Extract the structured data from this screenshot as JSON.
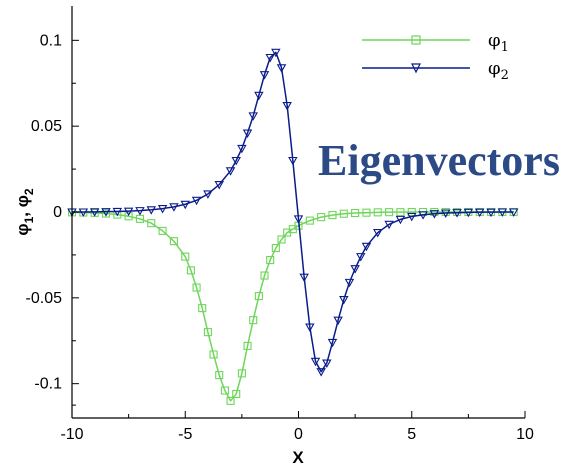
{
  "chart_data": {
    "type": "line",
    "xlabel": "X",
    "ylabel": "φ1, φ2",
    "ylabel_parts": {
      "a": "φ",
      "a_sub": "1",
      "sep": ", ",
      "b": "φ",
      "b_sub": "2"
    },
    "xlim": [
      -10,
      10
    ],
    "ylim": [
      -0.12,
      0.12
    ],
    "xticks": [
      -10,
      -5,
      0,
      5,
      10
    ],
    "xtick_labels": [
      "-10",
      "-5",
      "0",
      "5",
      "10"
    ],
    "yticks": [
      -0.1,
      -0.05,
      0,
      0.05,
      0.1
    ],
    "ytick_labels": [
      "-0.1",
      "-0.05",
      "0",
      "0.05",
      "0.1"
    ],
    "grid": false,
    "legend_position": "top-right",
    "annotation": "Eigenvectors",
    "series": [
      {
        "name": "φ1",
        "label": "φ",
        "sub": "1",
        "color": "#6ed65a",
        "marker": "square",
        "x": [
          -10,
          -9.5,
          -9,
          -8.5,
          -8,
          -7.5,
          -7,
          -6.5,
          -6,
          -5.5,
          -5,
          -4.75,
          -4.5,
          -4.25,
          -4,
          -3.75,
          -3.5,
          -3.25,
          -3,
          -2.75,
          -2.5,
          -2.25,
          -2,
          -1.75,
          -1.5,
          -1.25,
          -1,
          -0.75,
          -0.5,
          -0.25,
          0,
          0.5,
          1,
          1.5,
          2,
          2.5,
          3,
          3.5,
          4,
          4.5,
          5,
          5.5,
          6,
          6.5,
          7,
          7.5,
          8,
          8.5,
          9,
          9.5
        ],
        "y": [
          -0.0002,
          -0.0003,
          -0.0005,
          -0.0009,
          -0.0015,
          -0.0025,
          -0.004,
          -0.0065,
          -0.011,
          -0.017,
          -0.026,
          -0.034,
          -0.044,
          -0.056,
          -0.07,
          -0.083,
          -0.095,
          -0.104,
          -0.11,
          -0.106,
          -0.094,
          -0.078,
          -0.063,
          -0.049,
          -0.037,
          -0.028,
          -0.021,
          -0.016,
          -0.012,
          -0.01,
          -0.008,
          -0.005,
          -0.003,
          -0.0018,
          -0.001,
          -0.0006,
          -0.0004,
          -0.0002,
          -0.0001,
          -0.0001,
          0,
          0,
          0,
          0,
          0,
          0,
          0,
          0,
          0,
          0
        ]
      },
      {
        "name": "φ2",
        "label": "φ",
        "sub": "2",
        "color": "#0a1c8c",
        "marker": "triangle-down",
        "x": [
          -10,
          -9.5,
          -9,
          -8.5,
          -8,
          -7.5,
          -7,
          -6.5,
          -6,
          -5.5,
          -5,
          -4.5,
          -4,
          -3.5,
          -3,
          -2.75,
          -2.5,
          -2.25,
          -2,
          -1.75,
          -1.5,
          -1.25,
          -1,
          -0.75,
          -0.5,
          -0.25,
          0,
          0.25,
          0.5,
          0.75,
          1,
          1.25,
          1.5,
          1.75,
          2,
          2.25,
          2.5,
          2.75,
          3,
          3.5,
          4,
          4.5,
          5,
          5.5,
          6,
          6.5,
          7,
          7.5,
          8,
          8.5,
          9,
          9.5
        ],
        "y": [
          0,
          0,
          0.0001,
          0.0002,
          0.0003,
          0.0005,
          0.0008,
          0.0013,
          0.002,
          0.003,
          0.0045,
          0.0068,
          0.0105,
          0.016,
          0.024,
          0.03,
          0.037,
          0.046,
          0.056,
          0.068,
          0.08,
          0.09,
          0.093,
          0.084,
          0.062,
          0.03,
          -0.004,
          -0.038,
          -0.067,
          -0.087,
          -0.093,
          -0.088,
          -0.076,
          -0.063,
          -0.051,
          -0.041,
          -0.033,
          -0.026,
          -0.02,
          -0.012,
          -0.0072,
          -0.0043,
          -0.0026,
          -0.0016,
          -0.001,
          -0.0006,
          -0.0004,
          -0.0002,
          -0.0001,
          -0.0001,
          0,
          0
        ]
      }
    ]
  }
}
